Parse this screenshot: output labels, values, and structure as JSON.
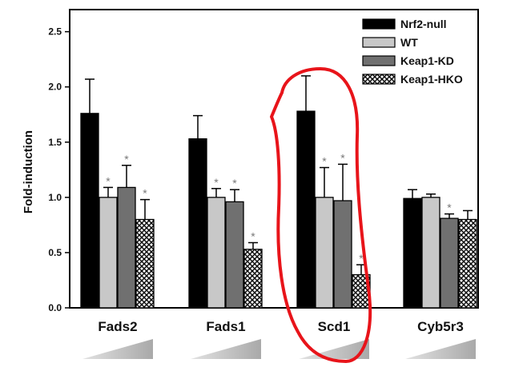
{
  "chart_data": {
    "type": "bar",
    "title": "",
    "xlabel": "",
    "ylabel": "Fold-induction",
    "ylim": [
      0,
      2.7
    ],
    "yticks": [
      "0.0",
      "0.5",
      "1.0",
      "1.5",
      "2.0",
      "2.5"
    ],
    "categories": [
      "Fads2",
      "Fads1",
      "Scd1",
      "Cyb5r3"
    ],
    "legend_position": "top-right",
    "grid": false,
    "series": [
      {
        "name": "Nrf2-null",
        "fill": "#000000",
        "pattern": "solid",
        "values": [
          1.76,
          1.53,
          1.78,
          0.99
        ],
        "errors": [
          0.31,
          0.21,
          0.32,
          0.08
        ],
        "stars": [
          false,
          false,
          false,
          false
        ]
      },
      {
        "name": "WT",
        "fill": "#c8c8c8",
        "pattern": "solid",
        "values": [
          1.0,
          1.0,
          1.0,
          1.0
        ],
        "errors": [
          0.09,
          0.08,
          0.27,
          0.03
        ],
        "stars": [
          true,
          true,
          true,
          false
        ]
      },
      {
        "name": "Keap1-KD",
        "fill": "#707070",
        "pattern": "solid",
        "values": [
          1.09,
          0.96,
          0.97,
          0.81
        ],
        "errors": [
          0.2,
          0.11,
          0.33,
          0.04
        ],
        "stars": [
          true,
          true,
          true,
          true
        ]
      },
      {
        "name": "Keap1-HKO",
        "fill": "#ffffff",
        "pattern": "crosshatch",
        "values": [
          0.8,
          0.53,
          0.3,
          0.8
        ],
        "errors": [
          0.18,
          0.06,
          0.09,
          0.08
        ],
        "stars": [
          true,
          true,
          true,
          false
        ]
      }
    ],
    "star_symbol": "*",
    "annotation": {
      "type": "hand-drawn-circle",
      "color": "#e8141a",
      "target_category": "Scd1"
    }
  }
}
